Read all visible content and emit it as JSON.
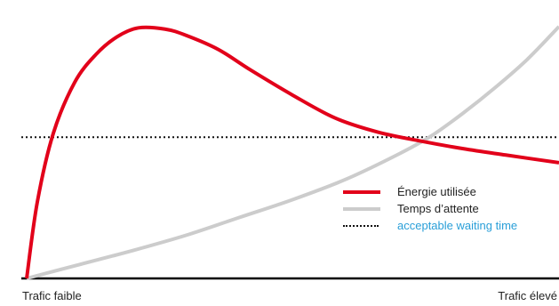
{
  "chart_data": {
    "type": "line",
    "x_range": [
      0,
      1
    ],
    "y_range": [
      0,
      1
    ],
    "x_tick_labels": {
      "low": "Trafic faible",
      "high": "Trafic élevé"
    },
    "series": [
      {
        "name": "Énergie utilisée",
        "color": "#e2001a",
        "style": "solid",
        "x": [
          0,
          0.02,
          0.05,
          0.09,
          0.13,
          0.17,
          0.21,
          0.26,
          0.3,
          0.36,
          0.42,
          0.5,
          0.58,
          0.66,
          0.74,
          0.82,
          0.9,
          1.0
        ],
        "y": [
          0,
          0.3,
          0.57,
          0.77,
          0.88,
          0.95,
          0.985,
          0.98,
          0.955,
          0.9,
          0.82,
          0.72,
          0.63,
          0.575,
          0.54,
          0.51,
          0.485,
          0.455
        ]
      },
      {
        "name": "Temps d’attente",
        "color": "#cccccc",
        "style": "solid",
        "x": [
          0,
          0.1,
          0.2,
          0.3,
          0.4,
          0.5,
          0.6,
          0.7,
          0.76,
          0.82,
          0.88,
          0.94,
          1.0
        ],
        "y": [
          0,
          0.055,
          0.11,
          0.17,
          0.24,
          0.31,
          0.39,
          0.49,
          0.56,
          0.65,
          0.75,
          0.86,
          0.99
        ]
      },
      {
        "name": "acceptable waiting time",
        "color": "#111111",
        "style": "dotted",
        "x": [
          0,
          1.0
        ],
        "y": [
          0.555,
          0.555
        ]
      }
    ],
    "legend_position": "bottom-right",
    "legend_label_colors": [
      "#222222",
      "#222222",
      "#2a9fd8"
    ],
    "grid": false,
    "axes": {
      "x_axis_line": true,
      "y_axis_line": false
    }
  }
}
